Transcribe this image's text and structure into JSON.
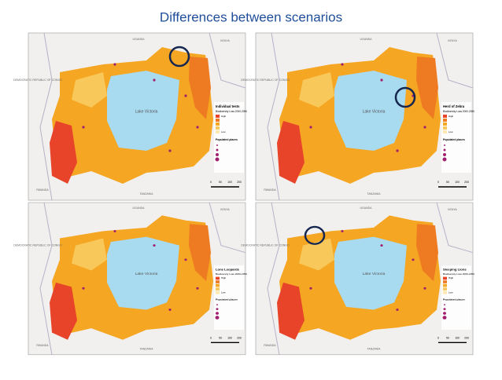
{
  "header": {
    "title": "Differences between scenarios"
  },
  "map_common": {
    "lake": "Lake Victoria",
    "legend_subtitle": "Biodiversity Loss 2000-2050",
    "legend_high": "High",
    "legend_low": "Low",
    "legend_places": "Populated places",
    "countries": [
      "UGANDA",
      "KENYA",
      "TANZANIA",
      "DEMOCRATIC REPUBLIC OF CONGO",
      "RWANDA"
    ],
    "scale": [
      "0",
      "50",
      "100",
      "200"
    ]
  },
  "panels": [
    {
      "legend_title": "Individual tests"
    },
    {
      "legend_title": "Herd of Zebra"
    },
    {
      "legend_title": "Lone Leopards"
    },
    {
      "legend_title": "Sleeping Lions"
    }
  ]
}
